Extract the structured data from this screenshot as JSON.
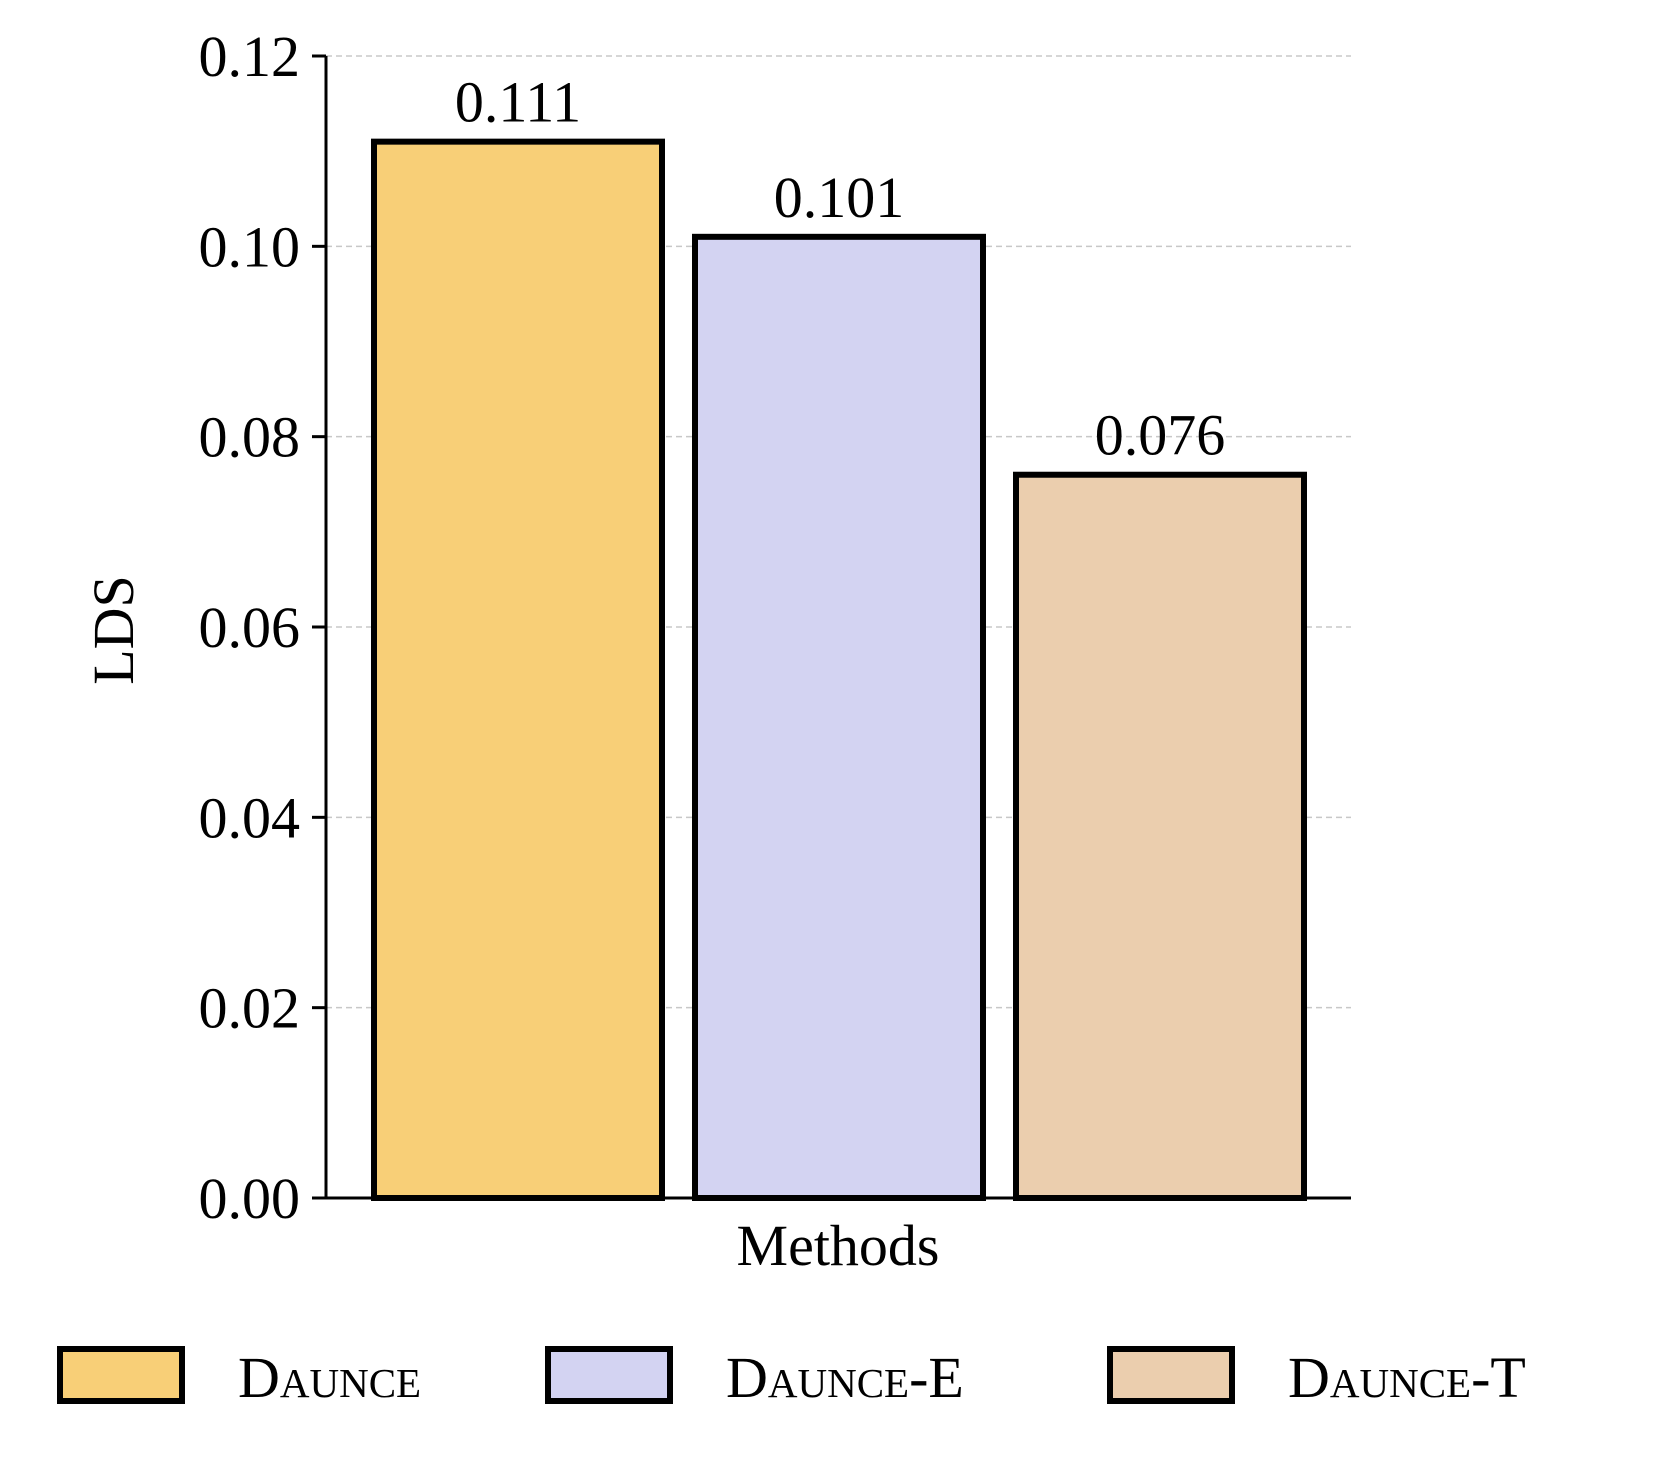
{
  "chart_data": {
    "type": "bar",
    "title": "",
    "xlabel": "Methods",
    "ylabel": "LDS",
    "ylim": [
      0,
      0.12
    ],
    "yticks": [
      0.0,
      0.02,
      0.04,
      0.06,
      0.08,
      0.1,
      0.12
    ],
    "ytick_labels": [
      "0.00",
      "0.02",
      "0.04",
      "0.06",
      "0.08",
      "0.10",
      "0.12"
    ],
    "grid": "y-dashed",
    "legend_position": "bottom",
    "series": [
      {
        "name": "Daunce",
        "value": 0.111,
        "label": "0.111",
        "color": "#F8CF77"
      },
      {
        "name": "Daunce-E",
        "value": 0.101,
        "label": "0.101",
        "color": "#D3D3F2"
      },
      {
        "name": "Daunce-T",
        "value": 0.076,
        "label": "0.076",
        "color": "#EBCEAE"
      }
    ]
  }
}
